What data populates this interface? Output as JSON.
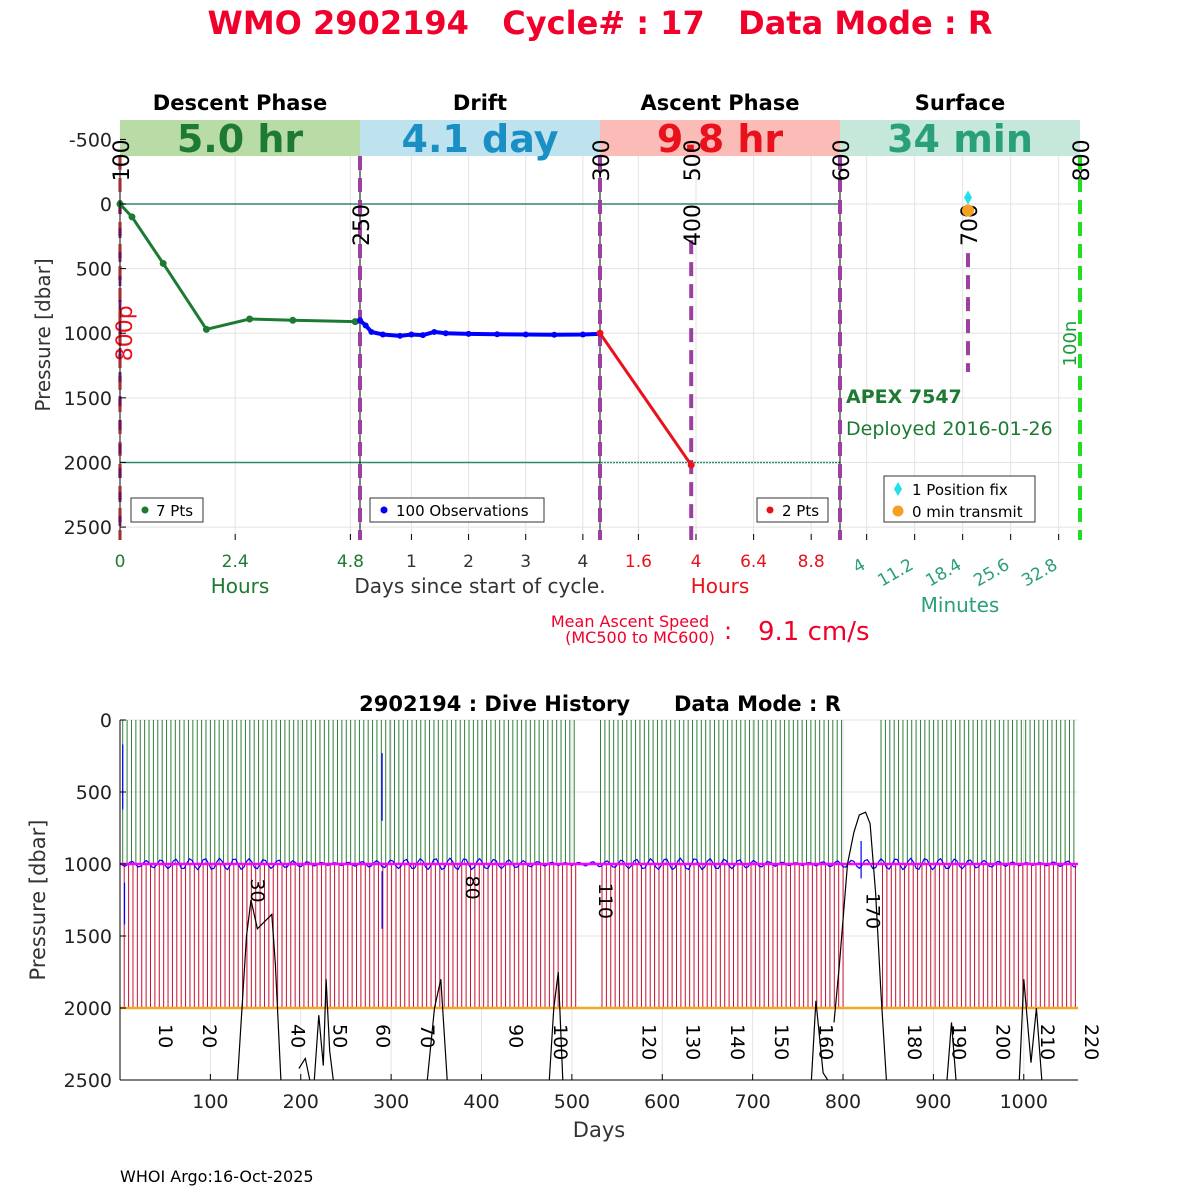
{
  "header": {
    "title": "WMO 2902194   Cycle# : 17   Data Mode : R",
    "title_color": "#f0002a"
  },
  "footer": {
    "credit": "WHOI Argo:16-Oct-2025"
  },
  "colors": {
    "descent": "#1d7a32",
    "drift": "#0000ff",
    "ascent": "#e8111c",
    "surface": "#2aa07a",
    "mission": "#9b3fa0",
    "grid": "#e3e3e3",
    "history_green": "#2f7f3a",
    "history_red": "#c8102e",
    "history_orange": "#f5a623"
  },
  "chart_data": [
    {
      "type": "line",
      "name": "cycle-profile",
      "ylabel": "Pressure [dbar]",
      "ylim": [
        2600,
        -650
      ],
      "yticks": [
        -500,
        0,
        500,
        1000,
        1500,
        2000,
        2500
      ],
      "reference_lines": [
        0,
        2000
      ],
      "panels": [
        {
          "key": "descent",
          "title": "Descent Phase",
          "duration": "5.0 hr",
          "band_color": "#b9dba6",
          "value_color": "#1d7a32",
          "xlim": [
            0,
            5.0
          ],
          "xticks": [
            0,
            2.4,
            4.8
          ],
          "xtick_color": "#1d7a32",
          "unit": "Hours",
          "unit_color": "#1d7a32",
          "points": [
            [
              0,
              0
            ],
            [
              0.25,
              100
            ],
            [
              0.9,
              460
            ],
            [
              1.8,
              970
            ],
            [
              2.7,
              890
            ],
            [
              3.6,
              900
            ],
            [
              4.9,
              910
            ]
          ],
          "legend": "7 Pts"
        },
        {
          "key": "drift",
          "title": "Drift",
          "duration": "4.1 day",
          "band_color": "#bfe3ee",
          "value_color": "#1a8fc4",
          "xlim": [
            0.1,
            4.3
          ],
          "xticks": [
            1,
            2,
            3,
            4
          ],
          "xtick_color": "#333333",
          "unit": "Days since start of cycle.",
          "unit_color": "#333333",
          "points": [
            [
              0.1,
              900
            ],
            [
              0.2,
              940
            ],
            [
              0.3,
              990
            ],
            [
              0.5,
              1010
            ],
            [
              0.8,
              1020
            ],
            [
              1.0,
              1010
            ],
            [
              1.2,
              1015
            ],
            [
              1.4,
              990
            ],
            [
              1.6,
              1000
            ],
            [
              2.0,
              1005
            ],
            [
              2.5,
              1008
            ],
            [
              3.0,
              1010
            ],
            [
              3.5,
              1012
            ],
            [
              4.0,
              1010
            ],
            [
              4.3,
              1005
            ]
          ],
          "legend": "100 Observations"
        },
        {
          "key": "ascent",
          "title": "Ascent Phase",
          "duration": "9.8 hr",
          "band_color": "#fbbcb8",
          "value_color": "#e8111c",
          "xlim": [
            0,
            10
          ],
          "xticks": [
            1.6,
            4,
            6.4,
            8.8
          ],
          "xtick_color": "#e8111c",
          "unit": "Hours",
          "unit_color": "#e8111c",
          "points": [
            [
              0,
              1000
            ],
            [
              3.8,
              2020
            ]
          ],
          "legend": "2 Pts"
        },
        {
          "key": "surface",
          "title": "Surface",
          "duration": "34 min",
          "band_color": "#c6e8da",
          "value_color": "#2aa07a",
          "xlim": [
            0,
            36
          ],
          "xticks": [
            4,
            11.2,
            18.4,
            25.6,
            32.8
          ],
          "xtick_color": "#2aa07a",
          "unit": "Minutes",
          "unit_color": "#2aa07a",
          "position_fix": [
            19.2,
            -50
          ],
          "transmit": [
            19.2,
            50
          ],
          "legend": [
            "1 Position fix",
            "0 min transmit"
          ]
        }
      ],
      "mission_markers": [
        {
          "label": "100",
          "panel": "descent",
          "x": 0,
          "label_pressure": -500
        },
        {
          "label": "250",
          "panel": "descent",
          "x": 5.0,
          "label_pressure": 0
        },
        {
          "label": "300",
          "panel": "drift",
          "x": 4.3,
          "label_pressure": -500
        },
        {
          "label": "400",
          "panel": "ascent",
          "x": 3.8,
          "label_pressure": 0
        },
        {
          "label": "500",
          "panel": "ascent",
          "x": 3.8,
          "label_pressure": -500
        },
        {
          "label": "600",
          "panel": "ascent",
          "x": 10,
          "label_pressure": -500
        },
        {
          "label": "700",
          "panel": "surface",
          "x": 19.2,
          "label_pressure": 0
        },
        {
          "label": "800",
          "panel": "surface",
          "x": 36,
          "label_pressure": -500
        }
      ],
      "annotations": {
        "park_label": "800p",
        "surface_label": "100n",
        "float_model": "APEX 7547",
        "deployed": "Deployed 2016-01-26",
        "ascent_speed_label_1": "Mean Ascent Speed",
        "ascent_speed_label_2": "(MC500 to MC600)",
        "ascent_speed_colon": ":",
        "ascent_speed_value": "9.1 cm/s"
      }
    },
    {
      "type": "line",
      "name": "dive-history",
      "title": "2902194 : Dive History      Data Mode : R",
      "xlabel": "Days",
      "ylabel": "Pressure [dbar]",
      "xlim": [
        0,
        1060
      ],
      "ylim": [
        2500,
        0
      ],
      "xticks": [
        100,
        200,
        300,
        400,
        500,
        600,
        700,
        800,
        900,
        1000
      ],
      "yticks": [
        0,
        500,
        1000,
        1500,
        2000,
        2500
      ],
      "cycle_interval_days": 5,
      "cycles": 220,
      "drift_pressure": 1000,
      "profile_pressure": 2000,
      "gaps": [
        [
          505,
          530
        ],
        [
          800,
          840
        ]
      ],
      "high_cycle_labels": [
        {
          "label": "30",
          "day": 145,
          "pressure": 1100
        },
        {
          "label": "80",
          "day": 383,
          "pressure": 1080
        },
        {
          "label": "110",
          "day": 530,
          "pressure": 1130
        },
        {
          "label": "170",
          "day": 826,
          "pressure": 1200
        }
      ],
      "low_cycle_labels": [
        {
          "label": "10",
          "day": 43
        },
        {
          "label": "20",
          "day": 92
        },
        {
          "label": "40",
          "day": 190
        },
        {
          "label": "50",
          "day": 236
        },
        {
          "label": "60",
          "day": 284
        },
        {
          "label": "70",
          "day": 333
        },
        {
          "label": "90",
          "day": 431
        },
        {
          "label": "100",
          "day": 480
        },
        {
          "label": "120",
          "day": 578
        },
        {
          "label": "130",
          "day": 627
        },
        {
          "label": "140",
          "day": 676
        },
        {
          "label": "150",
          "day": 725
        },
        {
          "label": "160",
          "day": 774
        },
        {
          "label": "180",
          "day": 872
        },
        {
          "label": "190",
          "day": 921
        },
        {
          "label": "200",
          "day": 970
        },
        {
          "label": "210",
          "day": 1019
        },
        {
          "label": "220",
          "day": 1068
        }
      ],
      "temperature_trace": [
        [
          130,
          2500
        ],
        [
          140,
          1500
        ],
        [
          145,
          1250
        ],
        [
          152,
          1450
        ],
        [
          160,
          1400
        ],
        [
          168,
          1350
        ],
        [
          172,
          1700
        ],
        [
          178,
          2500
        ],
        [
          198,
          2420
        ],
        [
          205,
          2350
        ],
        [
          210,
          2500
        ],
        [
          215,
          2500
        ],
        [
          220,
          2050
        ],
        [
          225,
          2400
        ],
        [
          228,
          1800
        ],
        [
          232,
          2300
        ],
        [
          236,
          2500
        ],
        [
          340,
          2500
        ],
        [
          348,
          2000
        ],
        [
          355,
          1800
        ],
        [
          362,
          2500
        ],
        [
          475,
          2500
        ],
        [
          480,
          2000
        ],
        [
          485,
          1750
        ],
        [
          490,
          2500
        ],
        [
          765,
          2500
        ],
        [
          770,
          1950
        ],
        [
          778,
          2450
        ],
        [
          783,
          2500
        ],
        [
          790,
          2100
        ],
        [
          796,
          1700
        ],
        [
          805,
          1000
        ],
        [
          812,
          780
        ],
        [
          818,
          660
        ],
        [
          825,
          640
        ],
        [
          830,
          720
        ],
        [
          836,
          1200
        ],
        [
          842,
          1900
        ],
        [
          848,
          2500
        ],
        [
          915,
          2500
        ],
        [
          920,
          2100
        ],
        [
          925,
          2500
        ],
        [
          995,
          2500
        ],
        [
          1000,
          1800
        ],
        [
          1008,
          2380
        ],
        [
          1014,
          2000
        ],
        [
          1020,
          2500
        ]
      ]
    }
  ]
}
